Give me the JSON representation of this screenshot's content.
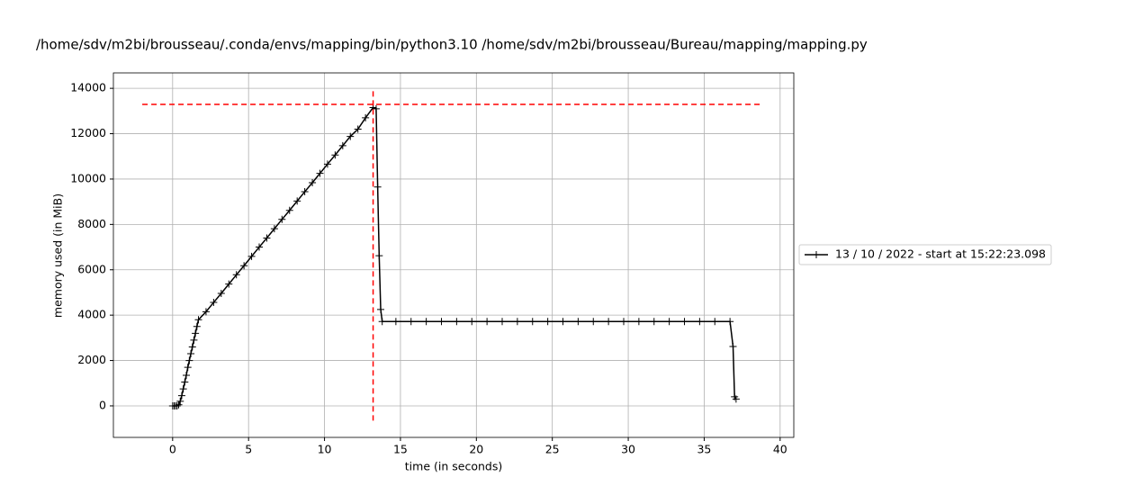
{
  "chart_data": {
    "type": "line",
    "title": "/home/sdv/m2bi/brousseau/.conda/envs/mapping/bin/python3.10 /home/sdv/m2bi/brousseau/Bureau/mapping/mapping.py",
    "xlabel": "time (in seconds)",
    "ylabel": "memory used (in MiB)",
    "x": [
      0,
      0.1,
      0.2,
      0.3,
      0.4,
      0.5,
      0.6,
      0.7,
      0.8,
      0.9,
      1.0,
      1.1,
      1.2,
      1.3,
      1.4,
      1.5,
      1.6,
      1.7,
      2.2,
      2.7,
      3.2,
      3.7,
      4.2,
      4.7,
      5.2,
      5.7,
      6.2,
      6.7,
      7.2,
      7.7,
      8.2,
      8.7,
      9.2,
      9.7,
      10.2,
      10.7,
      11.2,
      11.7,
      12.2,
      12.7,
      13.2,
      13.4,
      13.5,
      13.6,
      13.7,
      13.8,
      14.7,
      15.7,
      16.7,
      17.7,
      18.7,
      19.7,
      20.7,
      21.7,
      22.7,
      23.7,
      24.7,
      25.7,
      26.7,
      27.7,
      28.7,
      29.7,
      30.7,
      31.7,
      32.7,
      33.7,
      34.7,
      35.7,
      36.7,
      36.9,
      37.0,
      37.1
    ],
    "series": [
      {
        "name": "13 / 10 / 2022 - start at 15:22:23.098",
        "color": "#000000",
        "values": [
          0,
          0,
          0,
          0,
          50,
          200,
          450,
          750,
          1050,
          1350,
          1700,
          2000,
          2300,
          2600,
          2900,
          3200,
          3500,
          3800,
          4150,
          4560,
          4960,
          5370,
          5780,
          6180,
          6590,
          7000,
          7400,
          7810,
          8220,
          8620,
          9030,
          9440,
          9840,
          10250,
          10660,
          11060,
          11470,
          11880,
          12200,
          12700,
          13150,
          13100,
          9650,
          6620,
          4250,
          3720,
          3720,
          3720,
          3720,
          3720,
          3720,
          3720,
          3720,
          3720,
          3720,
          3720,
          3720,
          3720,
          3720,
          3720,
          3720,
          3720,
          3720,
          3720,
          3720,
          3720,
          3720,
          3720,
          3720,
          2620,
          400,
          300
        ]
      }
    ],
    "hlines": [
      {
        "y": 13290,
        "xmin": -2,
        "xmax": 38.8,
        "color": "#ff0000"
      }
    ],
    "vlines": [
      {
        "x": 13.2,
        "ymin": -650,
        "ymax": 14000,
        "color": "#ff0000"
      }
    ],
    "xlim": [
      -3.9,
      40.9
    ],
    "ylim": [
      -1390,
      14680
    ],
    "xticks": [
      0,
      5,
      10,
      15,
      20,
      25,
      30,
      35,
      40
    ],
    "yticks": [
      0,
      2000,
      4000,
      6000,
      8000,
      10000,
      12000,
      14000
    ],
    "grid": true,
    "legend": "outside-right"
  }
}
